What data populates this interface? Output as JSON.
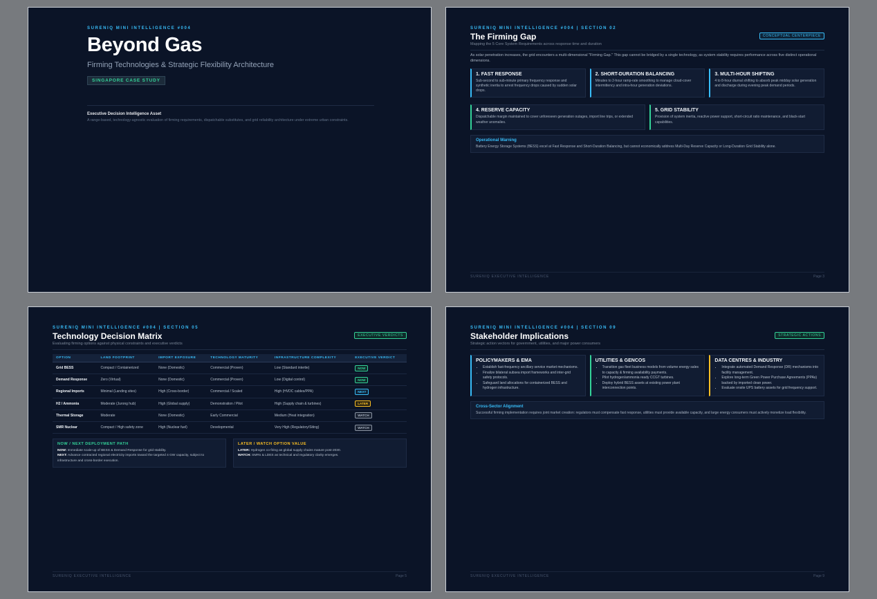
{
  "slides": [
    {
      "kicker": "SURENIQ MINI INTELLIGENCE #004",
      "title": "Beyond Gas",
      "subtitle": "Firming Technologies & Strategic Flexibility Architecture",
      "badge": "SINGAPORE CASE STUDY",
      "asset_title": "Executive Decision Intelligence Asset",
      "asset_text": "A range-based, technology-agnostic evaluation of firming requirements, dispatchable substitutes, and grid reliability architecture under extreme urban constraints."
    },
    {
      "kicker": "SURENIQ MINI INTELLIGENCE #004 | SECTION 02",
      "title": "The Firming Gap",
      "subtitle": "Mapping the 5 Core System Requirements across response time and duration",
      "tag": "CONCEPTUAL CENTERPIECE",
      "intro": "As solar penetration increases, the grid encounters a multi-dimensional \"Firming Gap.\" This gap cannot be bridged by a single technology, as system stability requires performance across five distinct operational dimensions.",
      "cards": [
        {
          "title": "1. FAST RESPONSE",
          "text": "Sub-second to sub-minute primary frequency response and synthetic inertia to arrest frequency drops caused by sudden solar drops."
        },
        {
          "title": "2. SHORT-DURATION BALANCING",
          "text": "Minutes to 2-hour ramp-rate smoothing to manage cloud-cover intermittency and intra-hour generation deviations."
        },
        {
          "title": "3. MULTI-HOUR SHIFTING",
          "text": "4 to 8-hour diurnal shifting to absorb peak midday solar generation and discharge during evening peak demand periods."
        },
        {
          "title": "4. RESERVE CAPACITY",
          "text": "Dispatchable margin maintained to cover unforeseen generation outages, import line trips, or extended weather anomalies."
        },
        {
          "title": "5. GRID STABILITY",
          "text": "Provision of system inertia, reactive power support, short-circuit ratio maintenance, and black-start capabilities."
        }
      ],
      "warning": {
        "title": "Operational Warning",
        "text": "Battery Energy Storage Systems (BESS) excel at Fast Response and Short-Duration Balancing, but cannot economically address Multi-Day Reserve Capacity or Long-Duration Grid Stability alone."
      },
      "footer": "SURENIQ EXECUTIVE INTELLIGENCE",
      "page": "Page 3"
    },
    {
      "kicker": "SURENIQ MINI INTELLIGENCE #004 | SECTION 05",
      "title": "Technology Decision Matrix",
      "subtitle": "Evaluating firming options against physical constraints and executive verdicts",
      "tag": "EXECUTIVE VERDICTS",
      "table": {
        "headers": [
          "OPTION",
          "LAND FOOTPRINT",
          "IMPORT EXPOSURE",
          "TECHNOLOGY MATURITY",
          "INFRASTRUCTURE COMPLEXITY",
          "EXECUTIVE VERDICT"
        ],
        "rows": [
          [
            "Grid BESS",
            "Compact / Containerized",
            "None (Domestic)",
            "Commercial (Proven)",
            "Low (Standard intertie)",
            "NOW"
          ],
          [
            "Demand Response",
            "Zero (Virtual)",
            "None (Domestic)",
            "Commercial (Proven)",
            "Low (Digital control)",
            "NOW"
          ],
          [
            "Regional Imports",
            "Minimal (Landing sites)",
            "High (Cross-border)",
            "Commercial / Scaled",
            "High (HVDC cables/PPA)",
            "NEXT"
          ],
          [
            "H2 / Ammonia",
            "Moderate (Jurong hub)",
            "High (Global supply)",
            "Demonstration / Pilot",
            "High (Supply chain & turbines)",
            "LATER"
          ],
          [
            "Thermal Storage",
            "Moderate",
            "None (Domestic)",
            "Early Commercial",
            "Medium (Heat integration)",
            "WATCH"
          ],
          [
            "SMR Nuclear",
            "Compact / High safety zone",
            "High (Nuclear fuel)",
            "Developmental",
            "Very High (Regulatory/Siting)",
            "WATCH"
          ]
        ]
      },
      "boxes": [
        {
          "title": "NOW / NEXT DEPLOYMENT PATH",
          "lines": [
            {
              "label": "NOW:",
              "text": "Immediate scale-up of BESS & Demand Response for grid stability."
            },
            {
              "label": "NEXT:",
              "text": "Advance contracted regional electricity imports toward the targeted 4 GW capacity, subject to infrastructure and cross-border execution."
            }
          ]
        },
        {
          "title": "LATER / WATCH OPTION VALUE",
          "lines": [
            {
              "label": "LATER:",
              "text": "Hydrogen co-firing as global supply chains mature post-2030."
            },
            {
              "label": "WATCH:",
              "text": "SMRs & LDES as technical and regulatory clarity emerges."
            }
          ]
        }
      ],
      "footer": "SURENIQ EXECUTIVE INTELLIGENCE",
      "page": "Page 5"
    },
    {
      "kicker": "SURENIQ MINI INTELLIGENCE #004 | SECTION 09",
      "title": "Stakeholder Implications",
      "subtitle": "Strategic action vectors for government, utilities, and major power consumers",
      "tag": "STRATEGIC ACTIONS",
      "columns": [
        {
          "title": "POLICYMAKERS & EMA",
          "bullets": [
            "Establish fast-frequency ancillary service market mechanisms.",
            "Finalize bilateral subsea import frameworks and inter-grid safety protocols.",
            "Safeguard land allocations for containerized BESS and hydrogen infrastructure."
          ]
        },
        {
          "title": "UTILITIES & GENCOS",
          "bullets": [
            "Transition gas fleet business models from volume energy sales to capacity & firming availability payments.",
            "Pilot hydrogen/ammonia ready CCGT turbines.",
            "Deploy hybrid BESS assets at existing power plant interconnection points."
          ]
        },
        {
          "title": "DATA CENTRES & INDUSTRY",
          "bullets": [
            "Integrate automated Demand Response (DR) mechanisms into facility management.",
            "Explore long-term Green Power Purchase Agreements (PPAs) backed by imported clean power.",
            "Evaluate onsite UPS battery assets for grid frequency support."
          ]
        }
      ],
      "alignment": {
        "title": "Cross-Sector Alignment",
        "text": "Successful firming implementation requires joint market creation: regulators must compensate fast response, utilities must provide available capacity, and large energy consumers must actively monetize load flexibility."
      },
      "footer": "SURENIQ EXECUTIVE INTELLIGENCE",
      "page": "Page 9"
    }
  ]
}
